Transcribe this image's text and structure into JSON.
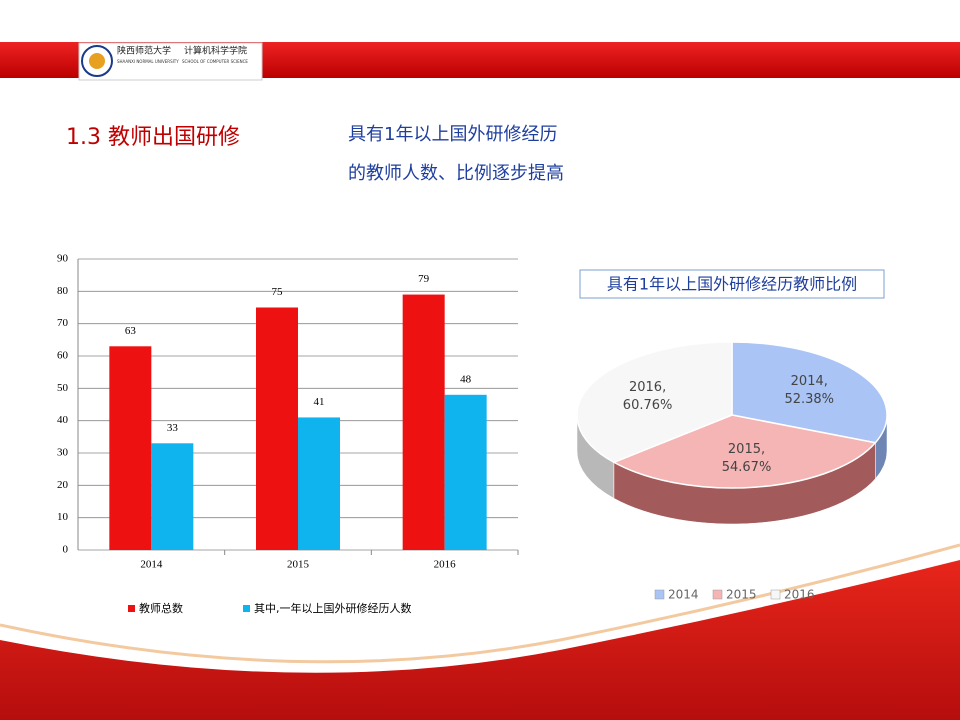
{
  "header": {
    "university": "陕西师范大学",
    "school": "计算机科学学院",
    "university_en": "SHAANXI NORMAL UNIVERSITY",
    "school_en": "SCHOOL OF COMPUTER SCIENCE"
  },
  "title": "1.3 教师出国研修",
  "subtitle": [
    "具有1年以上国外研修经历",
    "的教师人数、比例逐步提高"
  ],
  "chart_data": [
    {
      "type": "bar",
      "categories": [
        "2014",
        "2015",
        "2016"
      ],
      "series": [
        {
          "name": "教师总数",
          "color": "#ee1111",
          "values": [
            63,
            75,
            79
          ]
        },
        {
          "name": "其中,一年以上国外研修经历人数",
          "color": "#0fb4ef",
          "values": [
            33,
            41,
            48
          ]
        }
      ],
      "ylim": [
        0,
        90
      ],
      "yticks": [
        0,
        10,
        20,
        30,
        40,
        50,
        60,
        70,
        80,
        90
      ],
      "grid": true,
      "legend": "bottom"
    },
    {
      "type": "pie",
      "title": "具有1年以上国外研修经历教师比例",
      "categories": [
        "2014",
        "2015",
        "2016"
      ],
      "values": [
        52.38,
        54.67,
        60.76
      ],
      "slice_labels": [
        "2014,",
        "2015,",
        "2016,"
      ],
      "value_labels": [
        "52.38%",
        "54.67%",
        "60.76%"
      ],
      "colors": [
        "#a9c4f5",
        "#f5b5b5",
        "#f7f7f7"
      ],
      "legend": "bottom"
    }
  ]
}
